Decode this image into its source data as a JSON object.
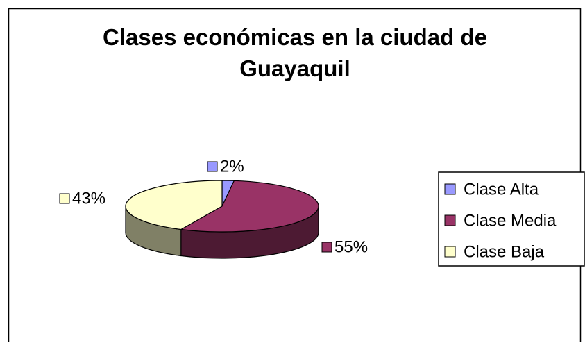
{
  "chart_data": {
    "type": "pie",
    "title": "Clases económicas en la ciudad de Guayaquil",
    "categories": [
      "Clase Alta",
      "Clase Media",
      "Clase Baja"
    ],
    "values": [
      2,
      55,
      43
    ],
    "value_labels": [
      "2%",
      "55%",
      "43%"
    ],
    "colors": [
      "#9999ff",
      "#993366",
      "#ffffcc"
    ],
    "legend": "right"
  }
}
